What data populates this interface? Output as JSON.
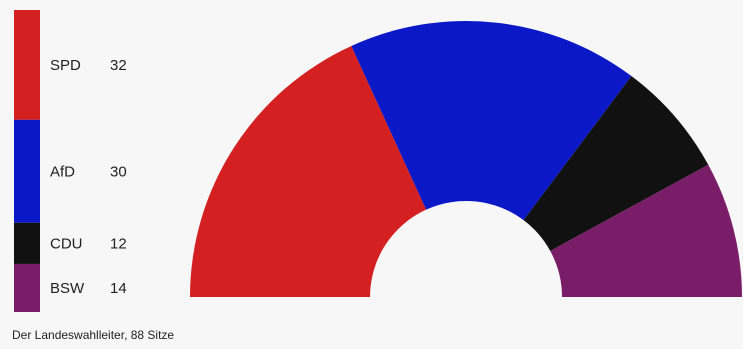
{
  "chart_data": {
    "type": "pie",
    "variant": "parliament-semicircle",
    "total_seats": 88,
    "series": [
      {
        "name": "SPD",
        "value": 32,
        "color": "#d42020"
      },
      {
        "name": "AfD",
        "value": 30,
        "color": "#0a18c8"
      },
      {
        "name": "CDU",
        "value": 12,
        "color": "#111111"
      },
      {
        "name": "BSW",
        "value": 14,
        "color": "#7a1d68"
      }
    ]
  },
  "source_text": "Der Landeswahlleiter, 88 Sitze"
}
